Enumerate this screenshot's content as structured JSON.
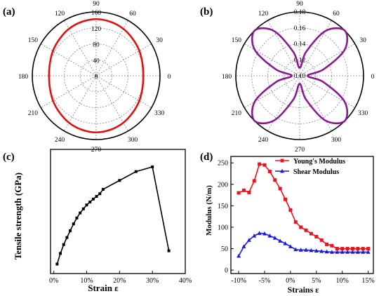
{
  "chart_data": [
    {
      "id": "a",
      "type": "polar",
      "panel_label": "(a)",
      "angle_labels": [
        "0",
        "30",
        "60",
        "90",
        "120",
        "150",
        "180",
        "210",
        "240",
        "270",
        "300",
        "330"
      ],
      "r_ticks": [
        "0",
        "40",
        "80",
        "120",
        "160"
      ],
      "r_range": [
        0,
        160
      ],
      "color": "#e01010",
      "series": [
        {
          "theta": [
            0,
            15,
            30,
            45,
            60,
            75,
            90,
            105,
            120,
            135,
            150,
            165,
            180,
            195,
            210,
            225,
            240,
            255,
            270,
            285,
            300,
            315,
            330,
            345
          ],
          "r": [
            118,
            120,
            125,
            130,
            136,
            140,
            142,
            140,
            136,
            130,
            125,
            120,
            118,
            120,
            125,
            130,
            136,
            140,
            142,
            140,
            136,
            130,
            125,
            120
          ]
        }
      ]
    },
    {
      "id": "b",
      "type": "polar",
      "panel_label": "(b)",
      "angle_labels": [
        "0",
        "30",
        "60",
        "90",
        "120",
        "150",
        "180",
        "210",
        "240",
        "270",
        "300",
        "330"
      ],
      "r_ticks": [
        "0.10",
        "0.12",
        "0.14",
        "0.16",
        "0.18"
      ],
      "r_range": [
        0.1,
        0.18
      ],
      "color": "#8a1a90",
      "series": [
        {
          "theta": [
            0,
            15,
            30,
            45,
            60,
            75,
            90,
            105,
            120,
            135,
            150,
            165,
            180,
            195,
            210,
            225,
            240,
            255,
            270,
            285,
            300,
            315,
            330,
            345
          ],
          "r": [
            0.11,
            0.131,
            0.165,
            0.18,
            0.165,
            0.131,
            0.11,
            0.131,
            0.165,
            0.18,
            0.165,
            0.131,
            0.11,
            0.131,
            0.165,
            0.18,
            0.165,
            0.131,
            0.11,
            0.131,
            0.165,
            0.18,
            0.165,
            0.131
          ]
        }
      ]
    },
    {
      "id": "c",
      "type": "line",
      "panel_label": "(c)",
      "xlabel": "Strain ε",
      "ylabel": "Tensile strength (GPa)",
      "xlim": [
        -1,
        40
      ],
      "ylim": [
        0,
        4.2
      ],
      "xticks": [
        0,
        10,
        20,
        30,
        40
      ],
      "xtick_labels": [
        "0%",
        "10%",
        "20%",
        "30%",
        "40%"
      ],
      "color": "#000000",
      "series": [
        {
          "x": [
            1,
            2,
            3,
            4,
            5,
            6,
            7,
            8,
            9,
            10,
            11,
            12,
            13,
            14,
            15,
            20,
            25,
            30,
            35
          ],
          "y": [
            0.32,
            0.68,
            0.98,
            1.22,
            1.45,
            1.68,
            1.88,
            2.05,
            2.19,
            2.32,
            2.42,
            2.52,
            2.61,
            2.7,
            2.85,
            3.15,
            3.45,
            3.61,
            0.77
          ]
        }
      ]
    },
    {
      "id": "d",
      "type": "line",
      "panel_label": "(d)",
      "xlabel": "Strains ε",
      "ylabel": "Modulus (N/m)",
      "xlim": [
        -11.5,
        16
      ],
      "ylim": [
        -8,
        265
      ],
      "xticks": [
        -10,
        -5,
        0,
        5,
        10,
        15
      ],
      "xtick_labels": [
        "-10%",
        "-5%",
        "0%",
        "5%",
        "10%",
        "15%"
      ],
      "yticks": [
        0,
        50,
        100,
        150,
        200,
        250
      ],
      "legend_position": "top-right",
      "series": [
        {
          "name": "Young's Modulus",
          "color": "#e8141e",
          "marker": "square",
          "x": [
            -10,
            -9,
            -8,
            -7,
            -6,
            -5,
            -4,
            -3,
            -2,
            -1,
            0,
            1,
            2,
            3,
            4,
            5,
            6,
            7,
            8,
            9,
            10,
            11,
            12,
            13,
            14,
            15
          ],
          "y": [
            180,
            186,
            181,
            208,
            247,
            245,
            230,
            210,
            190,
            165,
            140,
            112,
            100,
            93,
            85,
            78,
            70,
            60,
            57,
            50,
            50,
            50,
            50,
            50,
            50,
            50
          ]
        },
        {
          "name": "Shear Modulus",
          "color": "#1a1ae0",
          "marker": "triangle",
          "x": [
            -10,
            -9,
            -8,
            -7,
            -6,
            -5,
            -4,
            -3,
            -2,
            -1,
            0,
            1,
            2,
            3,
            4,
            5,
            6,
            7,
            8,
            9,
            10,
            11,
            12,
            13,
            14,
            15
          ],
          "y": [
            33,
            55,
            70,
            80,
            86,
            85,
            80,
            75,
            68,
            62,
            55,
            48,
            47,
            47,
            46,
            45,
            44,
            43,
            42,
            42,
            42,
            42,
            42,
            42,
            42,
            42
          ]
        }
      ]
    }
  ]
}
